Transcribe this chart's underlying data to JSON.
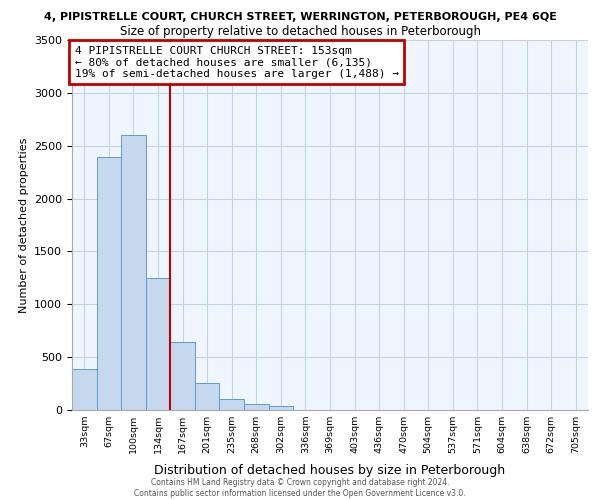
{
  "title_top": "4, PIPISTRELLE COURT, CHURCH STREET, WERRINGTON, PETERBOROUGH, PE4 6QE",
  "title_sub": "Size of property relative to detached houses in Peterborough",
  "xlabel": "Distribution of detached houses by size in Peterborough",
  "ylabel": "Number of detached properties",
  "bin_labels": [
    "33sqm",
    "67sqm",
    "100sqm",
    "134sqm",
    "167sqm",
    "201sqm",
    "235sqm",
    "268sqm",
    "302sqm",
    "336sqm",
    "369sqm",
    "403sqm",
    "436sqm",
    "470sqm",
    "504sqm",
    "537sqm",
    "571sqm",
    "604sqm",
    "638sqm",
    "672sqm",
    "705sqm"
  ],
  "bar_values": [
    390,
    2390,
    2600,
    1250,
    640,
    255,
    105,
    55,
    40,
    0,
    0,
    0,
    0,
    0,
    0,
    0,
    0,
    0,
    0,
    0
  ],
  "bar_color": "#c5d8ed",
  "bar_edge_color": "#5b9bd5",
  "ylim": [
    0,
    3500
  ],
  "yticks": [
    0,
    500,
    1000,
    1500,
    2000,
    2500,
    3000,
    3500
  ],
  "property_line_x": 4.0,
  "property_line_color": "#c00000",
  "annotation_line1": "4 PIPISTRELLE COURT CHURCH STREET: 153sqm",
  "annotation_line2": "← 80% of detached houses are smaller (6,135)",
  "annotation_line3": "19% of semi-detached houses are larger (1,488) →",
  "annotation_box_color": "#c00000",
  "footer_line1": "Contains HM Land Registry data © Crown copyright and database right 2024.",
  "footer_line2": "Contains public sector information licensed under the Open Government Licence v3.0.",
  "bg_color": "#ffffff",
  "plot_bg_color": "#f0f6ff",
  "grid_color": "#c0d4e8"
}
